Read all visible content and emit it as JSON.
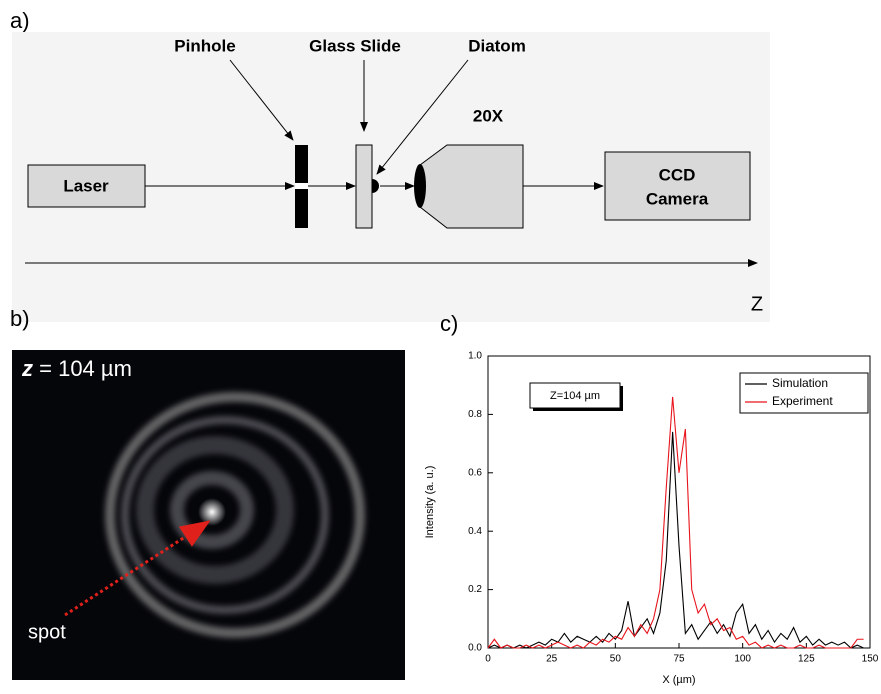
{
  "panel_a": {
    "label": "a)",
    "pinhole": "Pinhole",
    "glass_slide": "Glass Slide",
    "diatom": "Diatom",
    "objective": "20X",
    "laser": "Laser",
    "camera": [
      "CCD",
      "Camera"
    ],
    "axis": "Z"
  },
  "panel_b": {
    "label": "b)",
    "z_symbol": "z",
    "z_value": "= 104 µm",
    "spot": "spot"
  },
  "chart_data": {
    "type": "line",
    "label": "c)",
    "xlabel": "X (µm)",
    "ylabel": "Intensity (a. u.)",
    "annotation": "Z=104 µm",
    "x": [
      0,
      2.5,
      5,
      7.5,
      10,
      12.5,
      15,
      17.5,
      20,
      22.5,
      25,
      27.5,
      30,
      32.5,
      35,
      37.5,
      40,
      42.5,
      45,
      47.5,
      50,
      52.5,
      55,
      57.5,
      60,
      62.5,
      65,
      67.5,
      70,
      72.5,
      75,
      77.5,
      80,
      82.5,
      85,
      87.5,
      90,
      92.5,
      95,
      97.5,
      100,
      102.5,
      105,
      107.5,
      110,
      112.5,
      115,
      117.5,
      120,
      122.5,
      125,
      127.5,
      130,
      132.5,
      135,
      137.5,
      140,
      142.5,
      145,
      147.5
    ],
    "series": [
      {
        "name": "Simulation",
        "color": "#000000",
        "values": [
          0,
          0.01,
          0,
          0.01,
          0,
          0.01,
          0,
          0.01,
          0.02,
          0.01,
          0.03,
          0.02,
          0.05,
          0.02,
          0.04,
          0.03,
          0.02,
          0.04,
          0.02,
          0.05,
          0.03,
          0.06,
          0.16,
          0.04,
          0.07,
          0.1,
          0.05,
          0.12,
          0.3,
          0.74,
          0.35,
          0.05,
          0.08,
          0.03,
          0.06,
          0.09,
          0.05,
          0.08,
          0.04,
          0.12,
          0.15,
          0.05,
          0.08,
          0.03,
          0.06,
          0.02,
          0.05,
          0.03,
          0.07,
          0.02,
          0.04,
          0.01,
          0.03,
          0.01,
          0.02,
          0.01,
          0.02,
          0,
          0.01,
          0
        ]
      },
      {
        "name": "Experiment",
        "color": "#e8141b",
        "values": [
          0,
          0.03,
          0,
          0.01,
          0,
          0,
          0.01,
          0,
          0.01,
          0,
          0.01,
          0.02,
          0.01,
          0,
          0.01,
          0,
          0.02,
          0.01,
          0.03,
          0.02,
          0.04,
          0.03,
          0.07,
          0.04,
          0.08,
          0.05,
          0.1,
          0.2,
          0.55,
          0.86,
          0.6,
          0.75,
          0.2,
          0.12,
          0.15,
          0.08,
          0.1,
          0.06,
          0.07,
          0.03,
          0.04,
          0.01,
          0.02,
          0,
          0.01,
          0,
          0.01,
          0,
          0,
          0.01,
          0,
          0,
          0.01,
          0,
          0,
          0,
          0,
          0,
          0.03,
          0.03
        ]
      }
    ],
    "xlim": [
      0,
      150
    ],
    "xticks": [
      0,
      25,
      50,
      75,
      100,
      125,
      150
    ],
    "ylim": [
      0,
      1
    ],
    "yticks": [
      {
        "value": 0,
        "label": "0.0"
      },
      0.2,
      0.4,
      0.6,
      0.8,
      {
        "value": 1,
        "label": "1.0"
      }
    ],
    "legend": "upper right"
  }
}
